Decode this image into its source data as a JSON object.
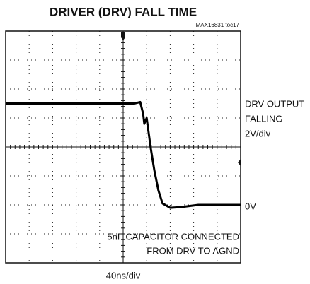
{
  "chart_data": {
    "type": "line",
    "title": "DRIVER (DRV) FALL TIME",
    "subtitle": "MAX16831 toc17",
    "x_label": "40ns/div",
    "annotations": [
      "DRV OUTPUT",
      "FALLING",
      "2V/div",
      "0V",
      "5nF CAPACITOR CONNECTED",
      "FROM DRV TO AGND"
    ],
    "color": "#000000",
    "xlim": [
      0,
      400
    ],
    "ylim": [
      -4,
      12
    ],
    "x": [
      0,
      219,
      229,
      234,
      236,
      240,
      243,
      247,
      253,
      260,
      267,
      280,
      298,
      328,
      400
    ],
    "values": [
      7.0,
      7.0,
      7.1,
      6.3,
      5.6,
      6.0,
      5.1,
      3.9,
      2.4,
      1.0,
      0.1,
      -0.2,
      -0.15,
      0,
      0
    ]
  }
}
